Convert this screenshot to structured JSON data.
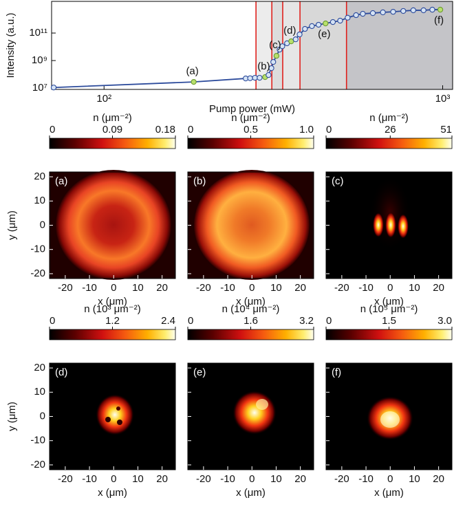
{
  "chart_data": [
    {
      "type": "line",
      "xlabel": "Pump power (mW)",
      "ylabel": "Intensity (a.u.)",
      "xscale": "log",
      "yscale": "log",
      "xlim": [
        70,
        1070
      ],
      "ylim": [
        8000000,
        20000000000000
      ],
      "xticks": [
        {
          "value": 100,
          "label": "10²"
        },
        {
          "value": 1000,
          "label": "10³"
        }
      ],
      "yticks": [
        {
          "value": 10000000,
          "label": "10⁷"
        },
        {
          "value": 1000000000,
          "label": "10⁹"
        },
        {
          "value": 100000000000,
          "label": "10¹¹"
        }
      ],
      "x": [
        71,
        184,
        262,
        270,
        279,
        288,
        299,
        306,
        312,
        316,
        323,
        330,
        336,
        347,
        357,
        368,
        378,
        392,
        411,
        430,
        451,
        474,
        498,
        524,
        555,
        581,
        622,
        666,
        714,
        765,
        819,
        878,
        932,
        984
      ],
      "values": [
        11000000,
        28000000,
        50000000,
        52000000,
        56000000,
        56000000,
        63000000,
        89000000,
        280000000,
        790000000,
        2200000000,
        6300000000,
        11000000000,
        18000000000,
        25000000000,
        35000000000,
        79000000000,
        200000000000,
        320000000000,
        400000000000,
        500000000000,
        630000000000,
        790000000000,
        1300000000000,
        2000000000000,
        2500000000000,
        2800000000000,
        3200000000000,
        3500000000000,
        4000000000000,
        4500000000000,
        4500000000000,
        5000000000000,
        5000000000000
      ],
      "color": "#2b4a9b",
      "marker_fill": "#d6e4f5",
      "highlight_color": "#b8e06c",
      "vlines": [
        281,
        313,
        337,
        379,
        520
      ],
      "vline_color": "#e0201c",
      "shade_colors": [
        "#ececec",
        "#dcdcdc",
        "#e6e6e6",
        "#d8d8d8",
        "#c4c4c8"
      ],
      "annotations": [
        {
          "text": "(a)",
          "x": 184,
          "y": 28000000
        },
        {
          "text": "(b)",
          "x": 299,
          "y": 63000000
        },
        {
          "text": "(c)",
          "x": 323,
          "y": 2200000000
        },
        {
          "text": "(d)",
          "x": 357,
          "y": 25000000000
        },
        {
          "text": "(e)",
          "x": 451,
          "y": 500000000000
        },
        {
          "text": "(f)",
          "x": 984,
          "y": 5000000000000
        }
      ]
    },
    {
      "type": "heatmap",
      "panel_label": "(a)",
      "colorbar_title": "n (μm⁻²)",
      "colorbar_lim": [
        0,
        0.18
      ],
      "colorbar_ticks": [
        0,
        0.09,
        0.18
      ],
      "xlim": [
        -26.5,
        25.5
      ],
      "ylim": [
        -22,
        22
      ],
      "xticks": [
        -20,
        -10,
        0,
        10,
        20
      ],
      "yticks": [
        -20,
        -10,
        0,
        10,
        20
      ],
      "show_ytick_labels": true,
      "xlabel": "x (μm)",
      "ylabel": "y (μm)"
    },
    {
      "type": "heatmap",
      "panel_label": "(b)",
      "colorbar_title": "n (μm⁻²)",
      "colorbar_lim": [
        0,
        1
      ],
      "colorbar_ticks": [
        0,
        0.5,
        {
          "value": 1,
          "label": "1.0"
        }
      ],
      "xlim": [
        -26.5,
        25.5
      ],
      "ylim": [
        -22,
        22
      ],
      "xticks": [
        -20,
        -10,
        0,
        10,
        20
      ],
      "yticks": [
        -20,
        -10,
        0,
        10,
        20
      ],
      "show_ytick_labels": false,
      "xlabel": "x (μm)"
    },
    {
      "type": "heatmap",
      "panel_label": "(c)",
      "colorbar_title": "n (μm⁻²)",
      "colorbar_lim": [
        0,
        51
      ],
      "colorbar_ticks": [
        0,
        26,
        51
      ],
      "xlim": [
        -26.5,
        25.5
      ],
      "ylim": [
        -22,
        22
      ],
      "xticks": [
        -20,
        -10,
        0,
        10,
        20
      ],
      "yticks": [
        -20,
        -10,
        0,
        10,
        20
      ],
      "show_ytick_labels": false,
      "xlabel": "x (μm)"
    },
    {
      "type": "heatmap",
      "panel_label": "(d)",
      "colorbar_title": "n (10³ μm⁻²)",
      "colorbar_lim": [
        0,
        2.4
      ],
      "colorbar_ticks": [
        0,
        1.2,
        2.4
      ],
      "xlim": [
        -26.5,
        25.5
      ],
      "ylim": [
        -22,
        22
      ],
      "xticks": [
        -20,
        -10,
        0,
        10,
        20
      ],
      "yticks": [
        -20,
        -10,
        0,
        10,
        20
      ],
      "show_ytick_labels": true,
      "xlabel": "x (μm)",
      "ylabel": "y (μm)"
    },
    {
      "type": "heatmap",
      "panel_label": "(e)",
      "colorbar_title": "n (10⁴ μm⁻²)",
      "colorbar_lim": [
        0,
        3.2
      ],
      "colorbar_ticks": [
        0,
        1.6,
        3.2
      ],
      "xlim": [
        -26.5,
        25.5
      ],
      "ylim": [
        -22,
        22
      ],
      "xticks": [
        -20,
        -10,
        0,
        10,
        20
      ],
      "yticks": [
        -20,
        -10,
        0,
        10,
        20
      ],
      "show_ytick_labels": false,
      "xlabel": "x (μm)"
    },
    {
      "type": "heatmap",
      "panel_label": "(f)",
      "colorbar_title": "n (10⁵ μm⁻²)",
      "colorbar_lim": [
        0,
        3
      ],
      "colorbar_ticks": [
        0,
        1.5,
        {
          "value": 3,
          "label": "3.0"
        }
      ],
      "xlim": [
        -26.5,
        25.5
      ],
      "ylim": [
        -22,
        22
      ],
      "xticks": [
        -20,
        -10,
        0,
        10,
        20
      ],
      "yticks": [
        -20,
        -10,
        0,
        10,
        20
      ],
      "show_ytick_labels": false,
      "xlabel": "x (μm)"
    }
  ]
}
